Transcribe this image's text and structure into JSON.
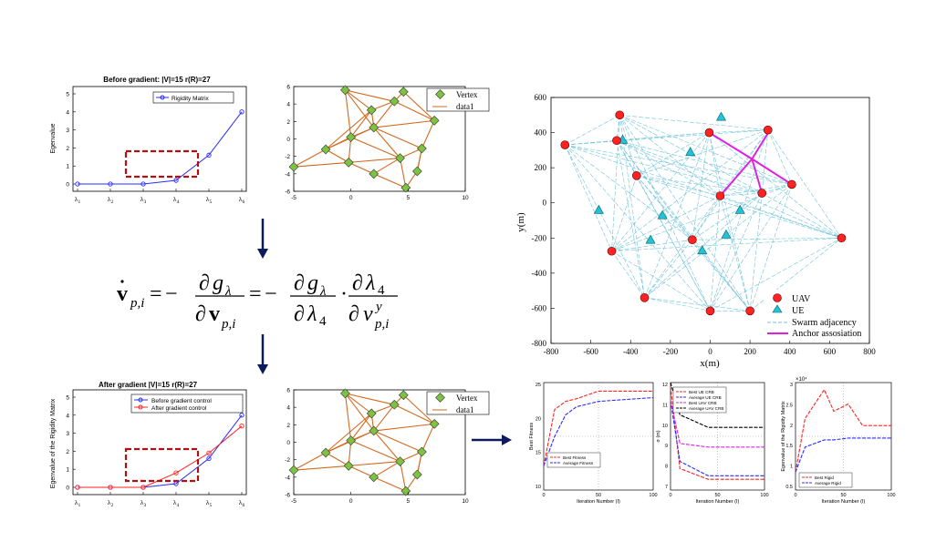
{
  "colors": {
    "blue": "#2b2bff",
    "red": "#ff2222",
    "orange": "#d2691e",
    "green": "#7dc241",
    "cyan": "#22c2d8",
    "adj": "#6fc3dc",
    "magenta": "#e020e0",
    "darkred": "#b01010",
    "arrow": "#0d1b5e"
  },
  "top_left_chart": {
    "title": "Before gradient: |V|=15 r(R)=27",
    "ylabel": "Egenvalue",
    "legend": [
      "Rigidity Matrix"
    ],
    "yticks": [
      "0",
      "1",
      "2",
      "3",
      "4",
      "5"
    ],
    "xticks": [
      "λ1",
      "λ2",
      "λ3",
      "λ4",
      "λ5",
      "λ6"
    ]
  },
  "top_graph": {
    "legend": [
      "Vertex",
      "data1"
    ],
    "xticks": [
      "-5",
      "0",
      "5",
      "10"
    ],
    "yticks": [
      "6",
      "4",
      "2",
      "0",
      "-2",
      "-4",
      "-6"
    ]
  },
  "equation": {
    "lhs": "v",
    "lhs_sub": "p,i",
    "g": "g",
    "lambda_sub": "λ",
    "v_bold": "v",
    "vp_sub": "p,i",
    "l4": "λ",
    "four": "4",
    "v_it": "v",
    "sup_y": "y",
    "sub_pi": "p,i",
    "partial": "∂",
    "eq": "=",
    "minus": "−",
    "dot": "·"
  },
  "bottom_left_chart": {
    "title": "After gradient |V|=15 r(R)=27",
    "ylabel": "Egenvalue of the Rigidity Matrix",
    "legend": [
      "Before gradient control",
      "After gradient control"
    ],
    "yticks": [
      "0",
      "1",
      "2",
      "3",
      "4",
      "5"
    ],
    "xticks": [
      "λ1",
      "λ2",
      "λ3",
      "λ4",
      "λ5",
      "λ6"
    ]
  },
  "bottom_graph": {
    "legend": [
      "Vertex",
      "data1"
    ],
    "xticks": [
      "-5",
      "0",
      "5",
      "10"
    ],
    "yticks": [
      "6",
      "4",
      "2",
      "0",
      "-2",
      "-4",
      "-6"
    ]
  },
  "network_chart": {
    "xlabel": "x(m)",
    "ylabel": "y(m)",
    "xticks": [
      "-800",
      "-600",
      "-400",
      "-200",
      "0",
      "200",
      "400",
      "600",
      "800"
    ],
    "yticks": [
      "600",
      "400",
      "200",
      "0",
      "-200",
      "-400",
      "-600",
      "-800"
    ],
    "legend": [
      "UAV",
      "UE",
      "Swarm adjacency",
      "Anchor assosiation"
    ]
  },
  "small_charts": [
    {
      "ylabel": "Best Fitness",
      "xlabel": "Iteration Number (I)",
      "yticks": [
        "25",
        "20",
        "15",
        "10"
      ],
      "xticks": [
        "0",
        "50",
        "100"
      ],
      "legend": [
        "Best Fitness",
        "Average Fitness"
      ]
    },
    {
      "ylabel": "σ (m)",
      "xlabel": "Iteration Number (I)",
      "yticks": [
        "12",
        "11",
        "10",
        "9",
        "8",
        "7"
      ],
      "xticks": [
        "0",
        "50",
        "100"
      ],
      "legend": [
        "Best UE CRB",
        "Average UE CRB",
        "Best UAV CRB",
        "Average UAV CRB"
      ]
    },
    {
      "ylabel": "Egenvalue of the Rigidity Matrix",
      "xlabel": "Iteration Number (I)",
      "exponent": "×10⁴",
      "yticks": [
        "3",
        "2.5",
        "2",
        "1.5",
        "1",
        "0.5"
      ],
      "xticks": [
        "0",
        "50",
        "100"
      ],
      "legend": [
        "Best Rigid",
        "Average Rigid"
      ]
    }
  ],
  "chart_data": [
    {
      "type": "line",
      "title": "Before gradient: |V|=15 r(R)=27",
      "categories": [
        "λ1",
        "λ2",
        "λ3",
        "λ4",
        "λ5",
        "λ6"
      ],
      "series": [
        {
          "name": "Rigidity Matrix",
          "values": [
            0,
            0,
            0,
            0.2,
            1.6,
            4.0
          ]
        }
      ],
      "ylim": [
        0,
        5
      ]
    },
    {
      "type": "line",
      "title": "After gradient |V|=15 r(R)=27",
      "categories": [
        "λ1",
        "λ2",
        "λ3",
        "λ4",
        "λ5",
        "λ6"
      ],
      "series": [
        {
          "name": "Before gradient control",
          "values": [
            0,
            0,
            0,
            0.2,
            1.6,
            4.0
          ]
        },
        {
          "name": "After gradient control",
          "values": [
            0,
            0,
            0,
            0.8,
            1.9,
            3.4
          ]
        }
      ],
      "ylim": [
        0,
        5
      ]
    },
    {
      "type": "scatter",
      "series": [
        {
          "name": "Vertex",
          "x": [
            -0.5,
            1.8,
            3.8,
            -5.0,
            -2.2,
            0.0,
            2.0,
            4.3,
            6.2,
            7.3,
            -0.2,
            2.0,
            4.8,
            5.8,
            4.6
          ],
          "y": [
            5.6,
            3.3,
            4.3,
            -3.2,
            -1.2,
            0.2,
            1.3,
            -2.2,
            -1.1,
            2.1,
            -2.7,
            -4.0,
            -5.6,
            -3.7,
            5.4
          ]
        }
      ],
      "xlim": [
        -5,
        10
      ],
      "ylim": [
        -6,
        6
      ]
    },
    {
      "type": "scatter",
      "series": [
        {
          "name": "UAV",
          "x": [
            -730,
            -455,
            -470,
            -370,
            -5,
            290,
            410,
            260,
            50,
            -90,
            -495,
            -330,
            0,
            200,
            660
          ],
          "y": [
            330,
            500,
            355,
            155,
            400,
            415,
            105,
            55,
            40,
            -210,
            -275,
            -540,
            -615,
            -615,
            -200
          ]
        },
        {
          "name": "UE",
          "x": [
            55,
            -440,
            -100,
            -560,
            -240,
            -300,
            150,
            -40,
            80
          ],
          "y": [
            490,
            360,
            290,
            -40,
            -70,
            -210,
            -40,
            -270,
            -180
          ]
        }
      ],
      "xlim": [
        -800,
        800
      ],
      "ylim": [
        -800,
        600
      ]
    },
    {
      "type": "line",
      "series": [
        {
          "name": "Best Fitness",
          "values": [
            9.5,
            20,
            21.5,
            22,
            23.4,
            23.4
          ]
        },
        {
          "name": "Average Fitness",
          "values": [
            9.5,
            15,
            19,
            20.5,
            21.5,
            22.2
          ]
        }
      ],
      "x": [
        0,
        10,
        20,
        30,
        50,
        100
      ],
      "xlim": [
        0,
        100
      ],
      "ylim": [
        5,
        25
      ]
    },
    {
      "type": "line",
      "series": [
        {
          "name": "Best UE CRB",
          "values": [
            11.8,
            7.2,
            6.6,
            6.6
          ]
        },
        {
          "name": "Average UE CRB",
          "values": [
            11,
            7.6,
            6.8,
            6.8
          ]
        },
        {
          "name": "Best UAV CRB",
          "values": [
            11,
            8.6,
            8.4,
            8.4
          ]
        },
        {
          "name": "Average UAV CRB",
          "values": [
            12,
            10.2,
            9.5,
            9.5
          ]
        }
      ],
      "x": [
        0,
        10,
        40,
        100
      ],
      "xlim": [
        0,
        100
      ],
      "ylim": [
        6,
        12
      ]
    },
    {
      "type": "line",
      "series": [
        {
          "name": "Best Rigid",
          "values": [
            0.5,
            2.0,
            2.8,
            2.2,
            2.4,
            1.8,
            1.8
          ]
        },
        {
          "name": "Average Rigid",
          "values": [
            0.5,
            1.2,
            1.4,
            1.4,
            1.45,
            1.45,
            1.45
          ]
        }
      ],
      "x": [
        0,
        10,
        30,
        40,
        55,
        70,
        100
      ],
      "xlim": [
        0,
        100
      ],
      "ylim": [
        0,
        3
      ]
    }
  ]
}
